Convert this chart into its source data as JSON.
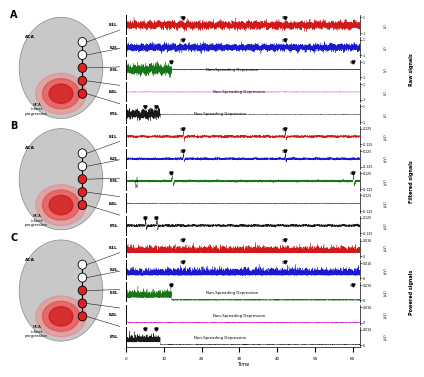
{
  "panels": [
    "A",
    "B",
    "C"
  ],
  "channels": [
    "E1L",
    "E2L",
    "E3L",
    "E4L",
    "E5L"
  ],
  "colors": [
    "#cc0000",
    "#0000cc",
    "#006600",
    "#cc00cc",
    "#000000"
  ],
  "time_range": [
    0,
    62
  ],
  "xlabel": "Time",
  "ylabel_A": "Raw signals",
  "ylabel_B": "Filtered signals",
  "ylabel_C": "Powered signals",
  "yticks_raw": [
    1,
    -1
  ],
  "yticks_filtered": [
    0.125,
    -0.125
  ],
  "yticks_powered": [
    0.016,
    0
  ],
  "sd_events": [
    [
      15,
      42
    ],
    [
      15,
      42
    ],
    [
      12,
      60
    ],
    [],
    [
      5,
      8
    ]
  ],
  "non_spreading_A": [
    2,
    3,
    4
  ],
  "non_spreading_C": [
    2,
    3,
    4
  ],
  "background": "#ffffff"
}
